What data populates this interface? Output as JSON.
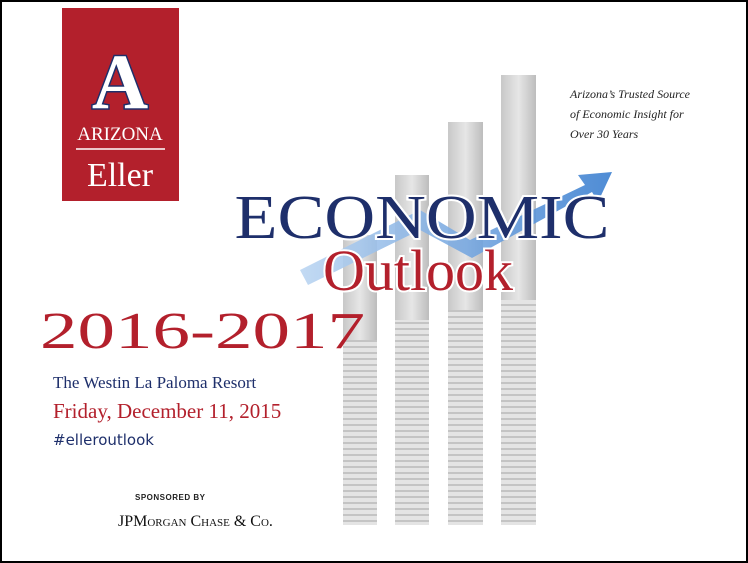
{
  "logo": {
    "letter": "A",
    "university": "ARIZONA",
    "school": "Eller"
  },
  "tagline": [
    "Arizona’s Trusted Source",
    "of Economic Insight for",
    "Over 30 Years"
  ],
  "title": {
    "line1": "ECONOMIC",
    "line2": "Outlook",
    "years": "2016-2017"
  },
  "event": {
    "venue": "The Westin La Paloma Resort",
    "date": "Friday, December 11, 2015",
    "hashtag": "#elleroutlook"
  },
  "sponsor": {
    "label": "SPONSORED BY",
    "name": "JPMorgan Chase & Co."
  }
}
